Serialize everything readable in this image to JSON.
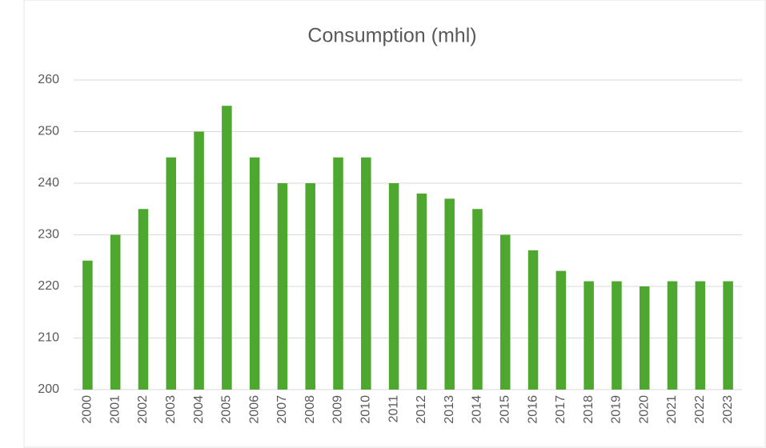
{
  "chart_data": {
    "type": "bar",
    "title": "Consumption (mhl)",
    "categories": [
      "2000",
      "2001",
      "2002",
      "2003",
      "2004",
      "2005",
      "2006",
      "2007",
      "2008",
      "2009",
      "2010",
      "2011",
      "2012",
      "2013",
      "2014",
      "2015",
      "2016",
      "2017",
      "2018",
      "2019",
      "2020",
      "2021",
      "2022",
      "2023"
    ],
    "values": [
      225,
      230,
      235,
      245,
      250,
      255,
      245,
      240,
      240,
      245,
      245,
      240,
      238,
      237,
      235,
      230,
      227,
      223,
      221,
      221,
      220,
      221,
      221,
      221
    ],
    "color": "#4ea72e",
    "ylim": [
      200,
      260
    ],
    "yticks": [
      200,
      210,
      220,
      230,
      240,
      250,
      260
    ],
    "grid": true
  }
}
